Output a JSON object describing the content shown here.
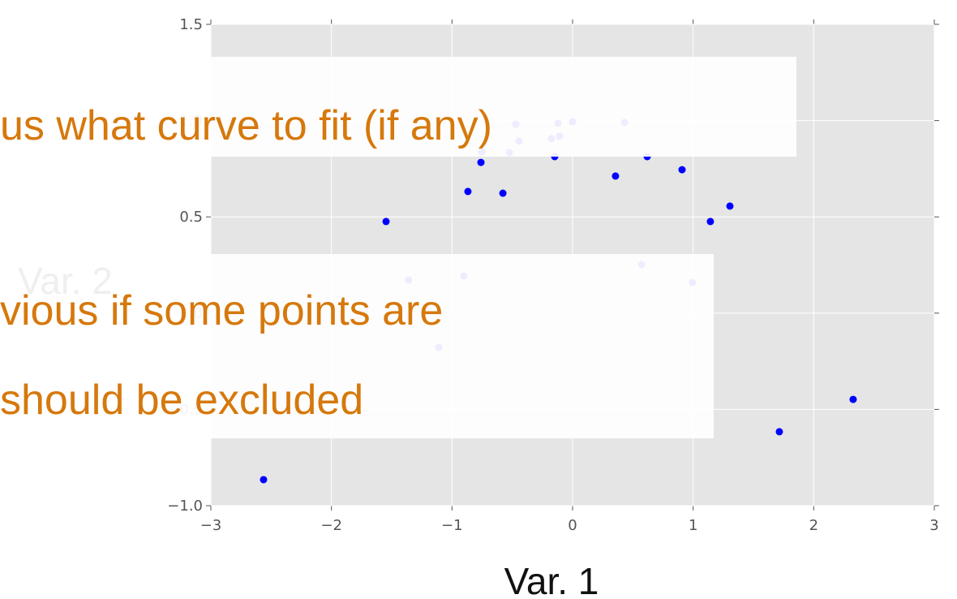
{
  "chart_data": {
    "type": "scatter",
    "x_label": "Var. 1",
    "y_label": "Var. 2",
    "annotations": [
      "us what curve to fit (if any)",
      "vious if some points are",
      "should be excluded"
    ],
    "series": [
      {
        "color": "#0000ff",
        "x": [
          -2.563,
          -1.547,
          -0.868,
          -0.76,
          -0.578,
          -0.148,
          0.356,
          0.619,
          0.908,
          1.143,
          1.305,
          1.715,
          2.327,
          -0.753,
          -0.525,
          -0.444,
          -0.471,
          -0.175,
          -0.108,
          -0.121,
          0.0,
          0.43,
          0.572,
          0.995,
          -1.359,
          -0.901,
          -1.11
        ],
        "values": [
          -0.865,
          0.476,
          0.632,
          0.783,
          0.623,
          0.813,
          0.712,
          0.813,
          0.745,
          0.476,
          0.556,
          -0.616,
          -0.448,
          0.838,
          0.834,
          0.893,
          0.981,
          0.906,
          0.918,
          0.986,
          0.994,
          0.99,
          0.252,
          0.159,
          0.172,
          0.193,
          -0.178
        ]
      }
    ],
    "xlim": [
      -3,
      3
    ],
    "xticks": [
      {
        "value": -3,
        "label": "−3"
      },
      {
        "value": -2,
        "label": "−2"
      },
      {
        "value": -1,
        "label": "−1"
      },
      0,
      1,
      2,
      3
    ],
    "ylim": [
      -1,
      1.5
    ],
    "yticks": [
      {
        "value": -1,
        "label": "−1.0"
      },
      {
        "value": -0.5,
        "label": "−0.5"
      },
      {
        "value": 0,
        "label": "0.0"
      },
      0.5,
      {
        "value": 1,
        "label": "1.0"
      },
      1.5
    ],
    "grid": true
  }
}
